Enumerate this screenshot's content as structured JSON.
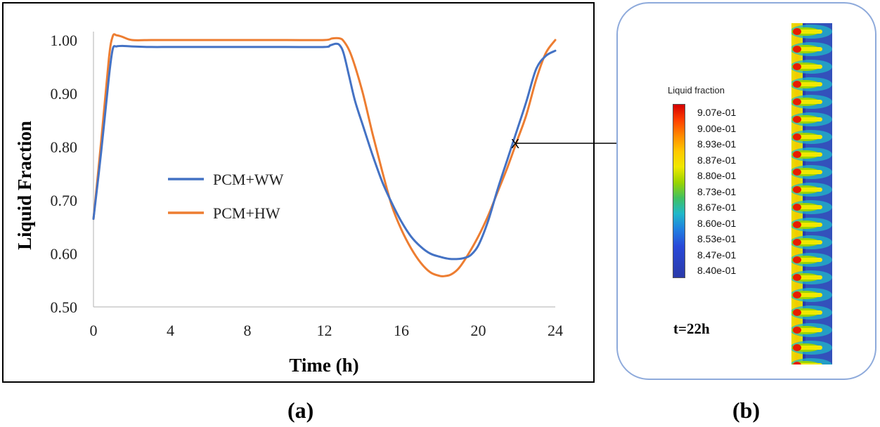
{
  "captions": {
    "a": "(a)",
    "b": "(b)"
  },
  "chart_data": {
    "type": "line",
    "xlabel": "Time (h)",
    "ylabel": "Liquid Fraction",
    "xlim": [
      0,
      24
    ],
    "ylim": [
      0.5,
      1.0
    ],
    "xticks": [
      "0",
      "4",
      "8",
      "12",
      "16",
      "20",
      "24"
    ],
    "yticks": [
      "0.50",
      "0.60",
      "0.70",
      "0.80",
      "0.90",
      "1.00"
    ],
    "grid": false,
    "legend_position": "center-left",
    "series": [
      {
        "name": "PCM+WW",
        "color": "#4472c4",
        "x": [
          0,
          0.4,
          0.8,
          1.0,
          1.2,
          1.5,
          2,
          3,
          4,
          6,
          8,
          10,
          12,
          12.3,
          12.6,
          12.8,
          13.0,
          13.3,
          13.6,
          14,
          14.5,
          15,
          15.5,
          16,
          16.5,
          17,
          17.5,
          18,
          18.5,
          19,
          19.3,
          19.6,
          20,
          20.5,
          21,
          21.5,
          22,
          22.5,
          23,
          23.5,
          24
        ],
        "y": [
          0.665,
          0.79,
          0.93,
          0.983,
          0.988,
          0.989,
          0.988,
          0.987,
          0.987,
          0.987,
          0.987,
          0.987,
          0.987,
          0.99,
          0.993,
          0.99,
          0.975,
          0.93,
          0.885,
          0.84,
          0.785,
          0.735,
          0.695,
          0.66,
          0.632,
          0.613,
          0.6,
          0.594,
          0.59,
          0.59,
          0.592,
          0.597,
          0.615,
          0.66,
          0.72,
          0.775,
          0.83,
          0.885,
          0.945,
          0.97,
          0.98
        ]
      },
      {
        "name": "PCM+HW",
        "color": "#ed7d31",
        "x": [
          0,
          0.4,
          0.8,
          1.0,
          1.2,
          1.5,
          2,
          3,
          4,
          6,
          8,
          10,
          12,
          12.4,
          12.8,
          13.0,
          13.3,
          13.6,
          14,
          14.5,
          15,
          15.5,
          16,
          16.5,
          17,
          17.5,
          18,
          18.3,
          18.6,
          19,
          19.5,
          20,
          20.5,
          21,
          21.5,
          22,
          22.5,
          23,
          23.5,
          24
        ],
        "y": [
          0.665,
          0.81,
          0.965,
          1.007,
          1.009,
          1.006,
          1.0,
          1.0,
          1.0,
          1.0,
          1.0,
          1.0,
          1.0,
          1.003,
          1.003,
          0.998,
          0.98,
          0.95,
          0.9,
          0.825,
          0.755,
          0.69,
          0.645,
          0.61,
          0.583,
          0.565,
          0.558,
          0.558,
          0.561,
          0.573,
          0.6,
          0.632,
          0.67,
          0.715,
          0.76,
          0.81,
          0.86,
          0.925,
          0.975,
          1.0
        ]
      }
    ],
    "annotations": [
      {
        "text": "X",
        "x": 22,
        "y": 0.807
      }
    ]
  },
  "panel_b": {
    "colorbar_title": "Liquid fraction",
    "colorbar_labels": [
      "9.07e-01",
      "9.00e-01",
      "8.93e-01",
      "8.87e-01",
      "8.80e-01",
      "8.73e-01",
      "8.67e-01",
      "8.60e-01",
      "8.53e-01",
      "8.47e-01",
      "8.40e-01"
    ],
    "time_label": "t=22h"
  }
}
